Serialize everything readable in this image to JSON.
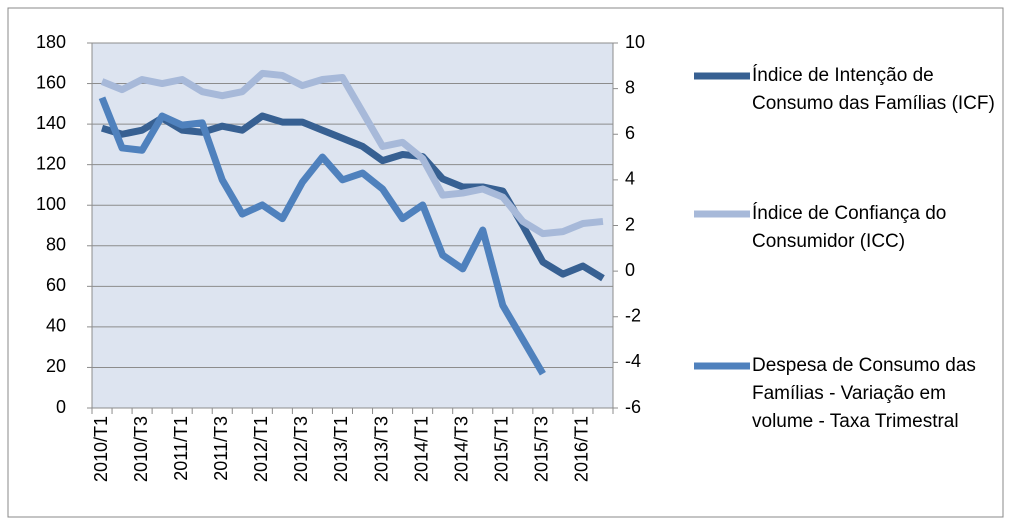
{
  "chart_data": {
    "type": "line",
    "categories": [
      "2010/T1",
      null,
      "2010/T3",
      null,
      "2011/T1",
      null,
      "2011/T3",
      null,
      "2012/T1",
      null,
      "2012/T3",
      null,
      "2013/T1",
      null,
      "2013/T3",
      null,
      "2014/T1",
      null,
      "2014/T3",
      null,
      "2015/T1",
      null,
      "2015/T3",
      null,
      "2016/T1",
      null
    ],
    "series": [
      {
        "name": "Índice de Intenção de Consumo das Famílias (ICF)",
        "color": "#376092",
        "values": [
          138,
          135,
          137,
          143,
          137,
          136,
          139,
          137,
          144,
          141,
          141,
          137,
          133,
          129,
          122,
          125,
          124,
          113,
          109,
          109,
          107,
          90,
          72,
          66,
          70,
          64
        ]
      },
      {
        "name": "Índice de Confiança do Consumidor (ICC)",
        "color": "#a7b9d9",
        "values": [
          161,
          157,
          162,
          160,
          162,
          156,
          154,
          156,
          165,
          164,
          159,
          162,
          163,
          146,
          129,
          131,
          123,
          105,
          106,
          108,
          104,
          92,
          86,
          87,
          91,
          92
        ]
      },
      {
        "name": "Despesa de Consumo das Famílias - Variação em volume - Taxa Trimestral",
        "color": "#4f81bd",
        "axis": "y2",
        "values": [
          7.6,
          5.4,
          5.3,
          6.8,
          6.4,
          6.5,
          4.0,
          2.5,
          2.9,
          2.3,
          3.9,
          5.0,
          4.0,
          4.3,
          3.6,
          2.3,
          2.9,
          0.7,
          0.1,
          1.8,
          -1.5,
          -3.0,
          -4.5,
          null,
          null,
          null
        ]
      }
    ],
    "ylim": [
      0,
      180
    ],
    "yticks": [
      0,
      20,
      40,
      60,
      80,
      100,
      120,
      140,
      160,
      180
    ],
    "y2lim": [
      -6,
      10
    ],
    "y2ticks": [
      -6,
      -4,
      -2,
      0,
      2,
      4,
      6,
      8,
      10
    ],
    "grid": true
  }
}
